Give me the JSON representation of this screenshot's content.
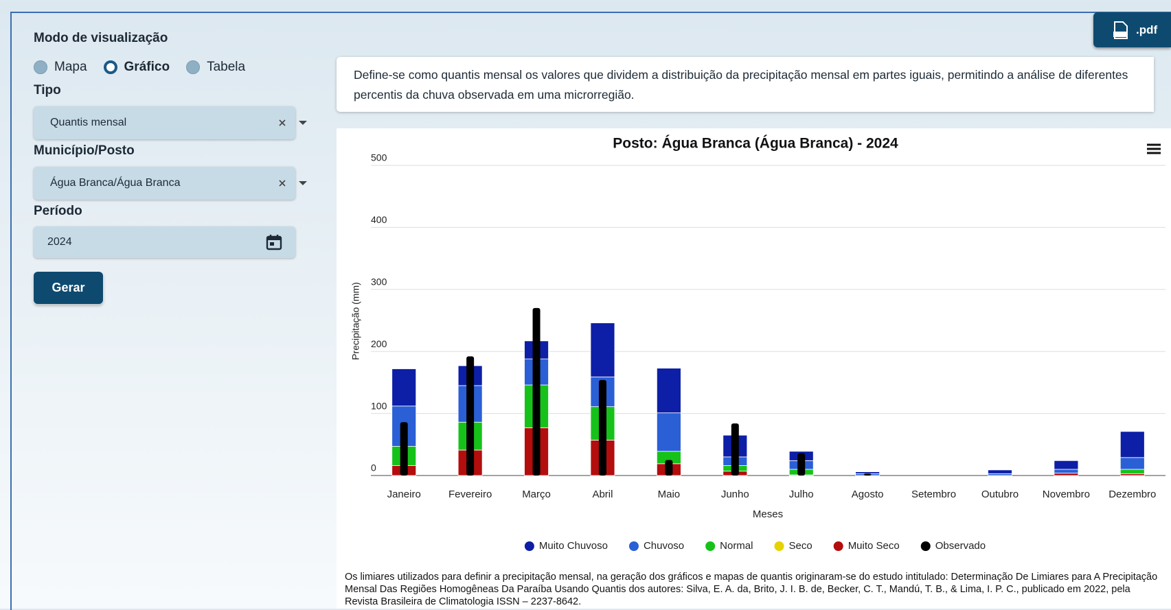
{
  "sidebar": {
    "mode_label": "Modo de visualização",
    "modes": [
      "Mapa",
      "Gráfico",
      "Tabela"
    ],
    "selected_mode": 1,
    "tipo_label": "Tipo",
    "tipo_value": "Quantis mensal",
    "posto_label": "Município/Posto",
    "posto_value": "Água Branca/Água Branca",
    "periodo_label": "Período",
    "periodo_value": "2024",
    "button": "Gerar"
  },
  "pdf_button": ".pdf",
  "description": "Define-se como quantis mensal os valores que dividem a distribuição da precipitação mensal em partes iguais, permitindo a análise de diferentes percentis da chuva observada em uma microrregião.",
  "footnote": "Os limiares utilizados para definir a precipitação mensal, na geração dos gráficos e mapas de quantis originaram-se do estudo intitulado: Determinação De Limiares para A Precipitação Mensal Das Regiões Homogêneas Da Paraíba Usando Quantis dos autores: Silva, E. A. da, Brito, J. I. B. de, Becker, C. T., Mandú, T. B., & Lima, I. P. C., publicado em 2022, pela Revista Brasileira de Climatologia ISSN – 2237-8642.",
  "chart_data": {
    "type": "bar",
    "title": "Posto: Água Branca (Água Branca) - 2024",
    "x_label": "Meses",
    "y_label": "Precipitação (mm)",
    "categories": [
      "Janeiro",
      "Fevereiro",
      "Março",
      "Abril",
      "Maio",
      "Junho",
      "Julho",
      "Agosto",
      "Setembro",
      "Outubro",
      "Novembro",
      "Dezembro"
    ],
    "series": [
      {
        "name": "Muito Chuvoso",
        "color": "#0d1fa6",
        "values": [
          60,
          32,
          29,
          87,
          72,
          35,
          15,
          3,
          0,
          6,
          14,
          42
        ]
      },
      {
        "name": "Chuvoso",
        "color": "#2a5fd6",
        "values": [
          65,
          59,
          42,
          48,
          62,
          14,
          14,
          3,
          0,
          3,
          6,
          19
        ]
      },
      {
        "name": "Normal",
        "color": "#16c21a",
        "values": [
          31,
          45,
          69,
          54,
          20,
          9,
          9,
          0,
          0,
          0,
          0,
          7
        ]
      },
      {
        "name": "Seco",
        "color": "#e6d200",
        "values": [
          0,
          0,
          0,
          0,
          0,
          0,
          0,
          0,
          0,
          0,
          0,
          0
        ]
      },
      {
        "name": "Muito Seco",
        "color": "#b30d0d",
        "values": [
          16,
          41,
          77,
          57,
          19,
          7,
          1,
          0,
          0,
          0,
          4,
          3
        ]
      },
      {
        "name": "Observado",
        "color": "#000000",
        "overlay": true,
        "values": [
          86,
          192,
          270,
          154,
          25,
          84,
          36,
          3,
          0,
          0,
          0,
          0
        ]
      }
    ],
    "ylim": [
      0,
      500
    ],
    "yticks": [
      0,
      100,
      200,
      300,
      400,
      500
    ],
    "grid": true,
    "legend": "bottom"
  }
}
